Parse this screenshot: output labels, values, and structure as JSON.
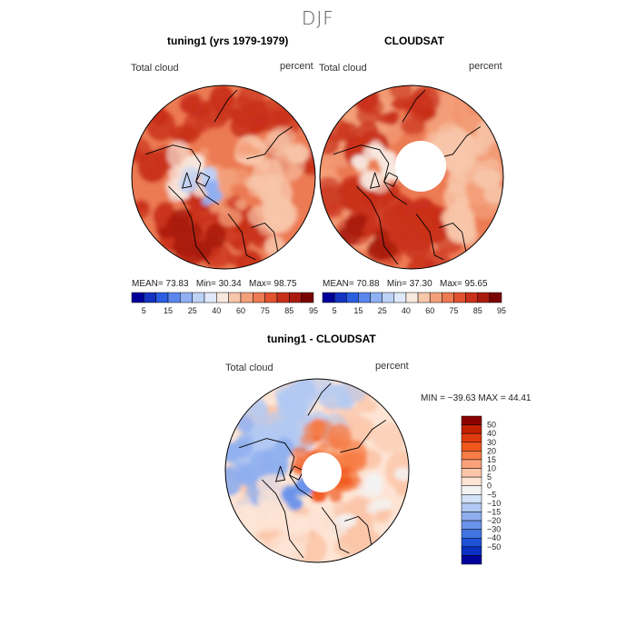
{
  "page_title": "DJF",
  "panels": [
    {
      "title": "tuning1 (yrs 1979-1979)",
      "field": "Total cloud",
      "units": "percent",
      "stats": {
        "mean": "73.83",
        "min": "30.34",
        "max": "98.75"
      }
    },
    {
      "title": "CLOUDSAT",
      "field": "Total cloud",
      "units": "percent",
      "stats": {
        "mean": "70.88",
        "min": "37.30",
        "max": "95.65"
      }
    },
    {
      "title": "tuning1 - CLOUDSAT",
      "field": "Total cloud",
      "units": "percent",
      "stats_text": "MIN = −39.63  MAX =  44.41"
    }
  ],
  "stat_labels": {
    "mean": "MEAN=",
    "min": "Min=",
    "max": "Max="
  },
  "chart_data": [
    {
      "type": "heatmap",
      "title": "tuning1 (yrs 1979-1979)",
      "projection": "north polar stereographic",
      "variable": "Total cloud",
      "units": "percent",
      "mean": 73.83,
      "min": 30.34,
      "max": 98.75,
      "colorbar": {
        "orientation": "horizontal",
        "tick_labels": [
          "5",
          "15",
          "25",
          "40",
          "60",
          "75",
          "85",
          "95"
        ],
        "colors": [
          "#000099",
          "#1433c2",
          "#2b5ee0",
          "#5a86ee",
          "#8fb0f3",
          "#bdd2f7",
          "#e0e9fa",
          "#f8e8df",
          "#f8c6aa",
          "#f3a07a",
          "#ec7a53",
          "#e2522f",
          "#c9301a",
          "#a91b0e",
          "#7a0404"
        ]
      }
    },
    {
      "type": "heatmap",
      "title": "CLOUDSAT",
      "projection": "north polar stereographic",
      "variable": "Total cloud",
      "units": "percent",
      "mean": 70.88,
      "min": 37.3,
      "max": 95.65,
      "colorbar": {
        "orientation": "horizontal",
        "tick_labels": [
          "5",
          "15",
          "25",
          "40",
          "60",
          "75",
          "85",
          "95"
        ],
        "colors": [
          "#000099",
          "#1433c2",
          "#2b5ee0",
          "#5a86ee",
          "#8fb0f3",
          "#bdd2f7",
          "#e0e9fa",
          "#f8e8df",
          "#f8c6aa",
          "#f3a07a",
          "#ec7a53",
          "#e2522f",
          "#c9301a",
          "#a91b0e",
          "#7a0404"
        ]
      }
    },
    {
      "type": "heatmap",
      "title": "tuning1 - CLOUDSAT",
      "projection": "north polar stereographic",
      "variable": "Total cloud",
      "units": "percent",
      "min": -39.63,
      "max": 44.41,
      "colorbar": {
        "orientation": "vertical",
        "tick_labels": [
          "50",
          "40",
          "30",
          "20",
          "15",
          "10",
          "5",
          "0",
          "−5",
          "−10",
          "−15",
          "−20",
          "−30",
          "−40",
          "−50"
        ],
        "colors": [
          "#8b0000",
          "#c22000",
          "#e03a10",
          "#f0561c",
          "#f77c45",
          "#f9a27a",
          "#fbc5a8",
          "#fde4d4",
          "#f3f3f3",
          "#d3e2f7",
          "#b2c9f3",
          "#8fafef",
          "#6a93ea",
          "#4274e0",
          "#1f52d6",
          "#0a2fc2",
          "#00009a"
        ]
      }
    }
  ]
}
